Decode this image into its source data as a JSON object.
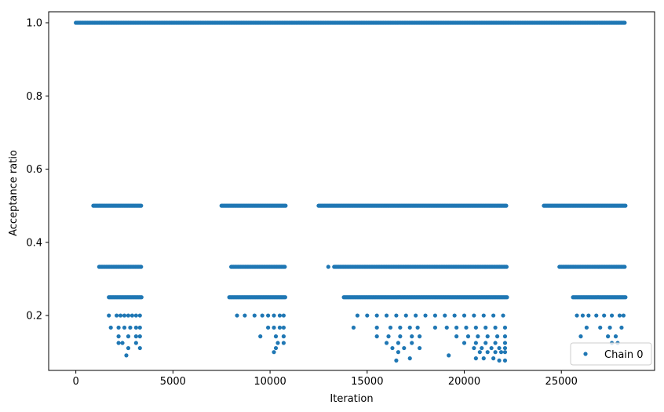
{
  "chart_data": {
    "type": "scatter",
    "xlabel": "Iteration",
    "ylabel": "Acceptance ratio",
    "xlim": [
      -1400,
      29800
    ],
    "ylim": [
      0.05,
      1.03
    ],
    "x_ticks": [
      0,
      5000,
      10000,
      15000,
      20000,
      25000
    ],
    "x_tick_labels": [
      "0",
      "5000",
      "10000",
      "15000",
      "20000",
      "25000"
    ],
    "y_ticks": [
      0.2,
      0.4,
      0.6,
      0.8,
      1.0
    ],
    "y_tick_labels": [
      "0.2",
      "0.4",
      "0.6",
      "0.8",
      "1.0"
    ],
    "grid": false,
    "legend_position": "lower right",
    "series": [
      {
        "name": "Chain 0",
        "color": "#1f77b4",
        "marker": "circle",
        "segments": [
          {
            "y": 1.0,
            "x_start": 0,
            "x_end": 28300
          },
          {
            "y": 0.5,
            "x_start": 900,
            "x_end": 3400
          },
          {
            "y": 0.5,
            "x_start": 7500,
            "x_end": 10800
          },
          {
            "y": 0.5,
            "x_start": 12500,
            "x_end": 22200
          },
          {
            "y": 0.5,
            "x_start": 24100,
            "x_end": 28300
          },
          {
            "y": 0.333,
            "x_start": 1200,
            "x_end": 3400
          },
          {
            "y": 0.333,
            "x_start": 8000,
            "x_end": 10800
          },
          {
            "y": 0.333,
            "x_start": 13300,
            "x_end": 22200
          },
          {
            "y": 0.333,
            "x_start": 24900,
            "x_end": 28300
          },
          {
            "y": 0.25,
            "x_start": 1700,
            "x_end": 3400
          },
          {
            "y": 0.25,
            "x_start": 7900,
            "x_end": 10800
          },
          {
            "y": 0.25,
            "x_start": 13800,
            "x_end": 22200
          },
          {
            "y": 0.25,
            "x_start": 25600,
            "x_end": 28300
          }
        ],
        "points": [
          {
            "x": 13000,
            "y": 0.333
          },
          {
            "x": 1700,
            "y": 0.2
          },
          {
            "x": 2100,
            "y": 0.2
          },
          {
            "x": 2300,
            "y": 0.2
          },
          {
            "x": 2500,
            "y": 0.2
          },
          {
            "x": 2700,
            "y": 0.2
          },
          {
            "x": 2900,
            "y": 0.2
          },
          {
            "x": 3100,
            "y": 0.2
          },
          {
            "x": 3300,
            "y": 0.2
          },
          {
            "x": 8300,
            "y": 0.2
          },
          {
            "x": 8700,
            "y": 0.2
          },
          {
            "x": 9200,
            "y": 0.2
          },
          {
            "x": 9600,
            "y": 0.2
          },
          {
            "x": 9900,
            "y": 0.2
          },
          {
            "x": 10200,
            "y": 0.2
          },
          {
            "x": 10500,
            "y": 0.2
          },
          {
            "x": 10700,
            "y": 0.2
          },
          {
            "x": 14500,
            "y": 0.2
          },
          {
            "x": 15000,
            "y": 0.2
          },
          {
            "x": 15500,
            "y": 0.2
          },
          {
            "x": 16000,
            "y": 0.2
          },
          {
            "x": 16500,
            "y": 0.2
          },
          {
            "x": 17000,
            "y": 0.2
          },
          {
            "x": 17500,
            "y": 0.2
          },
          {
            "x": 18000,
            "y": 0.2
          },
          {
            "x": 18500,
            "y": 0.2
          },
          {
            "x": 19000,
            "y": 0.2
          },
          {
            "x": 19500,
            "y": 0.2
          },
          {
            "x": 20000,
            "y": 0.2
          },
          {
            "x": 20500,
            "y": 0.2
          },
          {
            "x": 21000,
            "y": 0.2
          },
          {
            "x": 21500,
            "y": 0.2
          },
          {
            "x": 22000,
            "y": 0.2
          },
          {
            "x": 25800,
            "y": 0.2
          },
          {
            "x": 26100,
            "y": 0.2
          },
          {
            "x": 26400,
            "y": 0.2
          },
          {
            "x": 26800,
            "y": 0.2
          },
          {
            "x": 27200,
            "y": 0.2
          },
          {
            "x": 27600,
            "y": 0.2
          },
          {
            "x": 28000,
            "y": 0.2
          },
          {
            "x": 28200,
            "y": 0.2
          },
          {
            "x": 1800,
            "y": 0.167
          },
          {
            "x": 2200,
            "y": 0.167
          },
          {
            "x": 2500,
            "y": 0.167
          },
          {
            "x": 2800,
            "y": 0.167
          },
          {
            "x": 3100,
            "y": 0.167
          },
          {
            "x": 3300,
            "y": 0.167
          },
          {
            "x": 9900,
            "y": 0.167
          },
          {
            "x": 10200,
            "y": 0.167
          },
          {
            "x": 10500,
            "y": 0.167
          },
          {
            "x": 10700,
            "y": 0.167
          },
          {
            "x": 14300,
            "y": 0.167
          },
          {
            "x": 15500,
            "y": 0.167
          },
          {
            "x": 16200,
            "y": 0.167
          },
          {
            "x": 16700,
            "y": 0.167
          },
          {
            "x": 17200,
            "y": 0.167
          },
          {
            "x": 17600,
            "y": 0.167
          },
          {
            "x": 18500,
            "y": 0.167
          },
          {
            "x": 19100,
            "y": 0.167
          },
          {
            "x": 19600,
            "y": 0.167
          },
          {
            "x": 20100,
            "y": 0.167
          },
          {
            "x": 20600,
            "y": 0.167
          },
          {
            "x": 21100,
            "y": 0.167
          },
          {
            "x": 21600,
            "y": 0.167
          },
          {
            "x": 22100,
            "y": 0.167
          },
          {
            "x": 26300,
            "y": 0.167
          },
          {
            "x": 27000,
            "y": 0.167
          },
          {
            "x": 27500,
            "y": 0.167
          },
          {
            "x": 28100,
            "y": 0.167
          },
          {
            "x": 2200,
            "y": 0.143
          },
          {
            "x": 2700,
            "y": 0.143
          },
          {
            "x": 3100,
            "y": 0.143
          },
          {
            "x": 3300,
            "y": 0.143
          },
          {
            "x": 9500,
            "y": 0.143
          },
          {
            "x": 10300,
            "y": 0.143
          },
          {
            "x": 10700,
            "y": 0.143
          },
          {
            "x": 15500,
            "y": 0.143
          },
          {
            "x": 16100,
            "y": 0.143
          },
          {
            "x": 16700,
            "y": 0.143
          },
          {
            "x": 17300,
            "y": 0.143
          },
          {
            "x": 17700,
            "y": 0.143
          },
          {
            "x": 19600,
            "y": 0.143
          },
          {
            "x": 20200,
            "y": 0.143
          },
          {
            "x": 20700,
            "y": 0.143
          },
          {
            "x": 21200,
            "y": 0.143
          },
          {
            "x": 21700,
            "y": 0.143
          },
          {
            "x": 22100,
            "y": 0.143
          },
          {
            "x": 26000,
            "y": 0.143
          },
          {
            "x": 27400,
            "y": 0.143
          },
          {
            "x": 27800,
            "y": 0.143
          },
          {
            "x": 2200,
            "y": 0.125
          },
          {
            "x": 2400,
            "y": 0.125
          },
          {
            "x": 3100,
            "y": 0.125
          },
          {
            "x": 10400,
            "y": 0.125
          },
          {
            "x": 10700,
            "y": 0.125
          },
          {
            "x": 16000,
            "y": 0.125
          },
          {
            "x": 16600,
            "y": 0.125
          },
          {
            "x": 17300,
            "y": 0.125
          },
          {
            "x": 20000,
            "y": 0.125
          },
          {
            "x": 20600,
            "y": 0.125
          },
          {
            "x": 21100,
            "y": 0.125
          },
          {
            "x": 21600,
            "y": 0.125
          },
          {
            "x": 22100,
            "y": 0.125
          },
          {
            "x": 27600,
            "y": 0.125
          },
          {
            "x": 27900,
            "y": 0.125
          },
          {
            "x": 2700,
            "y": 0.111
          },
          {
            "x": 3300,
            "y": 0.111
          },
          {
            "x": 10300,
            "y": 0.111
          },
          {
            "x": 16300,
            "y": 0.111
          },
          {
            "x": 16900,
            "y": 0.111
          },
          {
            "x": 17700,
            "y": 0.111
          },
          {
            "x": 20500,
            "y": 0.111
          },
          {
            "x": 20900,
            "y": 0.111
          },
          {
            "x": 21400,
            "y": 0.111
          },
          {
            "x": 21800,
            "y": 0.111
          },
          {
            "x": 22100,
            "y": 0.111
          },
          {
            "x": 2600,
            "y": 0.091
          },
          {
            "x": 10200,
            "y": 0.1
          },
          {
            "x": 16600,
            "y": 0.1
          },
          {
            "x": 19200,
            "y": 0.091
          },
          {
            "x": 20800,
            "y": 0.1
          },
          {
            "x": 21200,
            "y": 0.1
          },
          {
            "x": 21600,
            "y": 0.1
          },
          {
            "x": 21900,
            "y": 0.1
          },
          {
            "x": 22100,
            "y": 0.1
          },
          {
            "x": 16500,
            "y": 0.077
          },
          {
            "x": 17200,
            "y": 0.083
          },
          {
            "x": 20600,
            "y": 0.083
          },
          {
            "x": 21000,
            "y": 0.083
          },
          {
            "x": 21500,
            "y": 0.083
          },
          {
            "x": 21800,
            "y": 0.077
          },
          {
            "x": 22100,
            "y": 0.077
          }
        ]
      }
    ]
  }
}
